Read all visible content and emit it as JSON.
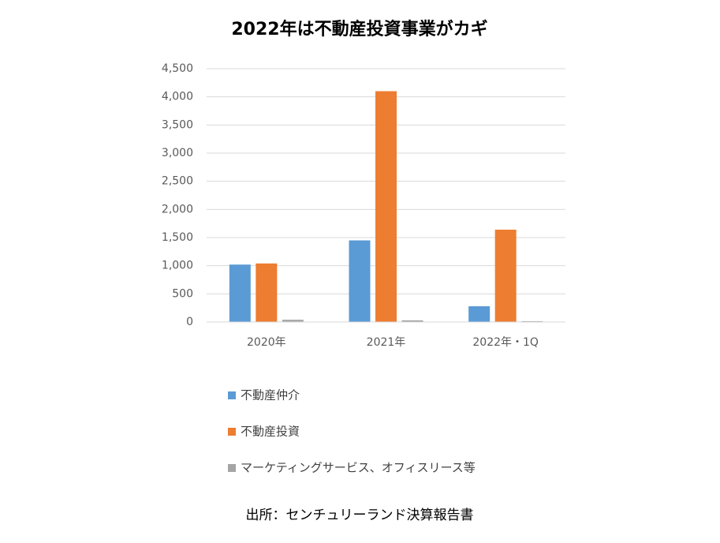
{
  "chart_data": {
    "type": "bar",
    "title": "2022年は不動産投資事業がカギ",
    "categories": [
      "2020年",
      "2021年",
      "2022年・1Q"
    ],
    "series": [
      {
        "name": "不動産仲介",
        "color": "#5b9bd5",
        "values": [
          1020,
          1450,
          280
        ]
      },
      {
        "name": "不動産投資",
        "color": "#ed7d31",
        "values": [
          1040,
          4100,
          1640
        ]
      },
      {
        "name": "マーケティングサービス、オフィスリース等",
        "color": "#a5a5a5",
        "values": [
          40,
          30,
          15
        ]
      }
    ],
    "ylim": [
      0,
      4500
    ],
    "yticks": [
      0,
      500,
      {
        "value": 1000,
        "label": "1,000"
      },
      {
        "value": 1500,
        "label": "1,500"
      },
      {
        "value": 2000,
        "label": "2,000"
      },
      {
        "value": 2500,
        "label": "2,500"
      },
      {
        "value": 3000,
        "label": "3,000"
      },
      {
        "value": 3500,
        "label": "3,500"
      },
      {
        "value": 4000,
        "label": "4,000"
      },
      {
        "value": 4500,
        "label": "4,500"
      }
    ],
    "grid": true,
    "legend": "bottom",
    "note": "出所：センチュリーランド決算報告書"
  }
}
